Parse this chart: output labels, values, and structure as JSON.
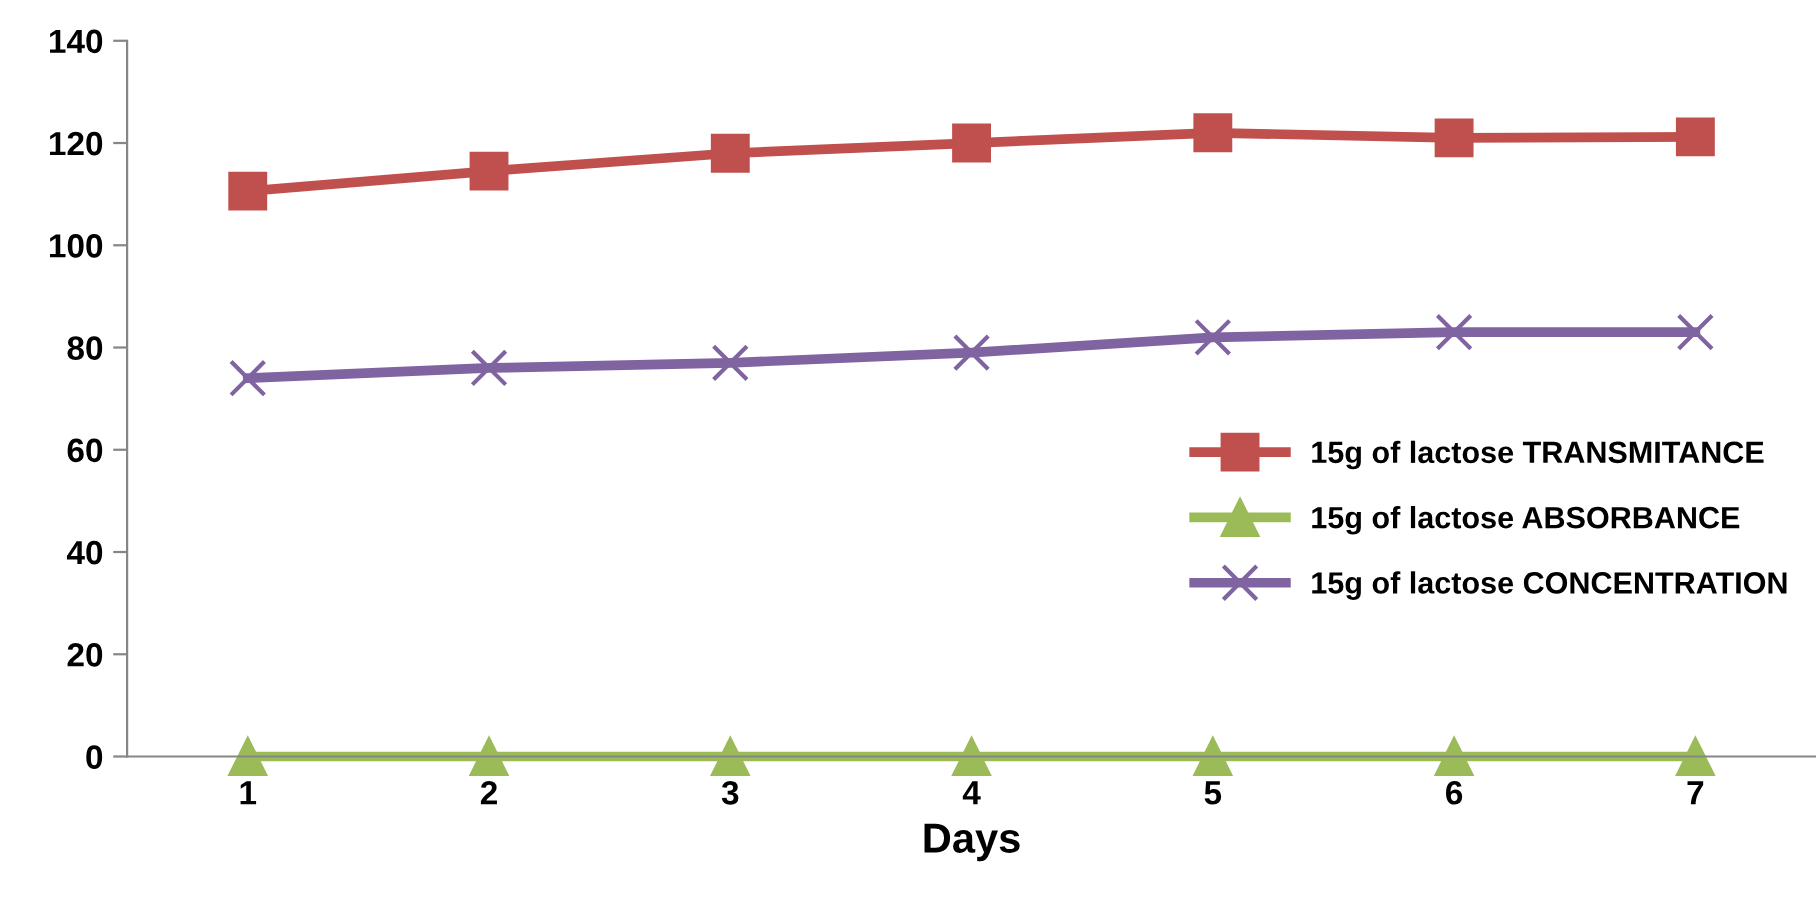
{
  "chart_data": {
    "type": "line",
    "xlabel": "Days",
    "categories": [
      "1",
      "2",
      "3",
      "4",
      "5",
      "6",
      "7"
    ],
    "series": [
      {
        "name": "15g of lactose TRANSMITANCE",
        "color": "#c0504d",
        "marker": "square",
        "values": [
          110.6,
          114.5,
          118,
          120,
          122,
          121,
          121.2
        ]
      },
      {
        "name": "15g of lactose ABSORBANCE",
        "color": "#9bbb59",
        "marker": "triangle",
        "values": [
          0,
          0,
          0,
          0,
          0,
          0,
          0
        ]
      },
      {
        "name": "15g of lactose CONCENTRATION",
        "color": "#8064a2",
        "marker": "cross",
        "values": [
          74,
          76,
          77,
          79,
          82,
          83,
          83
        ]
      }
    ],
    "ylim": [
      0,
      140
    ],
    "yticks": [
      0,
      20,
      40,
      60,
      80,
      100,
      120,
      140
    ],
    "grid": false,
    "legend": "right"
  }
}
